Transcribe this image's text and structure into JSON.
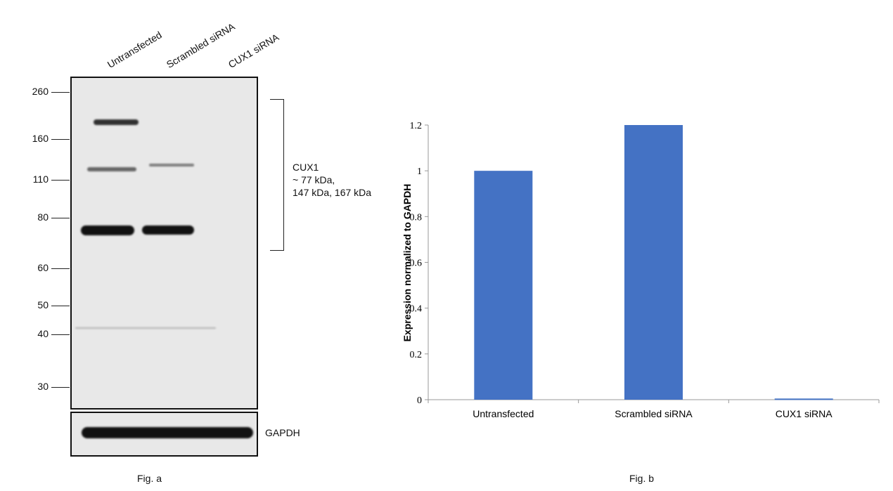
{
  "fig_a": {
    "caption": "Fig. a",
    "lanes": [
      "Untransfected",
      "Scrambled siRNA",
      "CUX1 siRNA"
    ],
    "markers": [
      "260",
      "160",
      "110",
      "80",
      "60",
      "50",
      "40",
      "30"
    ],
    "target_label": [
      "CUX1",
      "~ 77 kDa,",
      "147 kDa, 167 kDa"
    ],
    "loading_control": "GAPDH"
  },
  "fig_b": {
    "caption": "Fig. b"
  },
  "chart_data": {
    "type": "bar",
    "categories": [
      "Untransfected",
      "Scrambled siRNA",
      "CUX1 siRNA"
    ],
    "values": [
      1.0,
      1.2,
      0.005
    ],
    "ylabel": "Expression normalized to GAPDH",
    "xlabel": "",
    "ylim": [
      0,
      1.2
    ],
    "yticks": [
      "0",
      "0.2",
      "0.4",
      "0.6",
      "0.8",
      "1",
      "1.2"
    ],
    "bar_color": "#4472C4",
    "grid": false
  }
}
